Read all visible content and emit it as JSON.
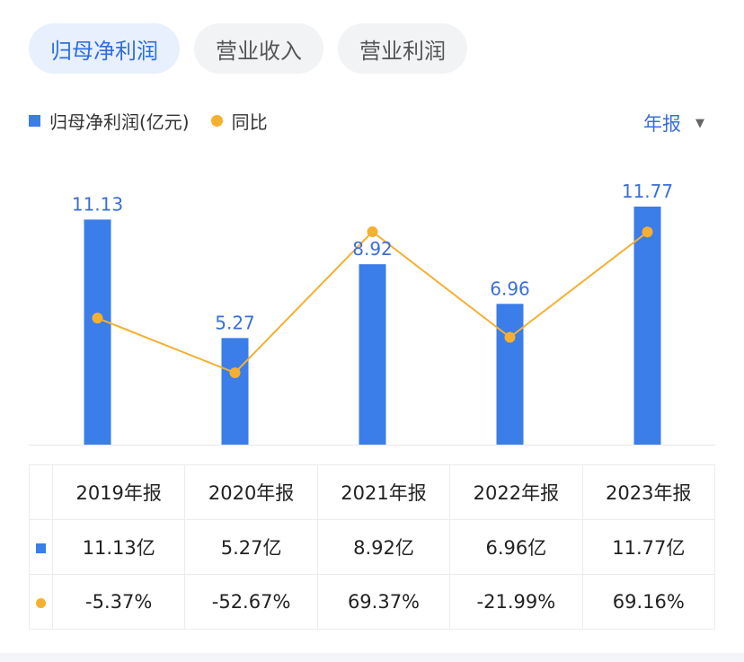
{
  "tabs": [
    {
      "label": "归母净利润"
    },
    {
      "label": "营业收入"
    },
    {
      "label": "营业利润"
    }
  ],
  "legend": {
    "bar_label": "归母净利润(亿元)",
    "line_label": "同比"
  },
  "period": {
    "label": "年报"
  },
  "colors": {
    "bar": "#3b7de9",
    "line": "#f5b030",
    "positive": "#e05252",
    "negative": "#2fa66a",
    "accent": "#2f6fe0"
  },
  "chart_data": {
    "type": "bar",
    "categories": [
      "2019年报",
      "2020年报",
      "2021年报",
      "2022年报",
      "2023年报"
    ],
    "series": [
      {
        "name": "归母净利润(亿元)",
        "type": "bar",
        "values": [
          11.13,
          5.27,
          8.92,
          6.96,
          11.77
        ]
      },
      {
        "name": "同比",
        "type": "line",
        "values": [
          -5.37,
          -52.67,
          69.37,
          -21.99,
          69.16
        ]
      }
    ],
    "value_labels": [
      "11.13",
      "5.27",
      "8.92",
      "6.96",
      "11.77"
    ]
  },
  "table": {
    "headers": [
      "2019年报",
      "2020年报",
      "2021年报",
      "2022年报",
      "2023年报"
    ],
    "values": [
      "11.13亿",
      "5.27亿",
      "8.92亿",
      "6.96亿",
      "11.77亿"
    ],
    "yoy": [
      "-5.37%",
      "-52.67%",
      "69.37%",
      "-21.99%",
      "69.16%"
    ]
  }
}
